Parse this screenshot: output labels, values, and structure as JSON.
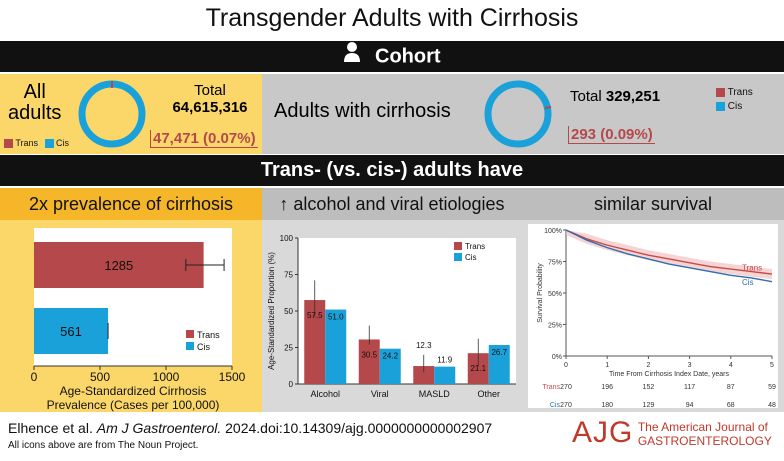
{
  "title": "Transgender Adults with Cirrhosis",
  "cohort_bar": {
    "label": "Cohort",
    "icon": "person-icon"
  },
  "all_adults": {
    "label_line1": "All",
    "label_line2": "adults",
    "total_label": "Total",
    "total_value": "64,615,316",
    "trans_value": "47,471 (0.07%)",
    "legend_trans": "Trans",
    "legend_cis": "Cis"
  },
  "cirrhosis": {
    "label": "Adults with cirrhosis",
    "total_label": "Total",
    "total_value": "329,251",
    "trans_value": "293 (0.09%)",
    "legend_trans": "Trans",
    "legend_cis": "Cis"
  },
  "colors": {
    "trans": "#b5484a",
    "cis": "#1ba1d9",
    "yellow": "#fbd76a",
    "gray": "#c8c8c8",
    "dark": "#111111"
  },
  "findings_bar": {
    "label": "Trans- (vs. cis-) adults have"
  },
  "panel1": {
    "heading": "2x prevalence of cirrhosis",
    "chart_data": {
      "type": "bar",
      "orientation": "horizontal",
      "categories": [
        "Trans",
        "Cis"
      ],
      "values": [
        1285,
        561
      ],
      "labels": [
        "1285",
        "561"
      ],
      "xlim": [
        0,
        1500
      ],
      "xticks": [
        "0",
        "500",
        "1000",
        "1500"
      ],
      "xlabel_line1": "Age-Standardized Cirrhosis",
      "xlabel_line2": "Prevalence (Cases per 100,000)",
      "legend": [
        "Trans",
        "Cis"
      ]
    }
  },
  "panel2": {
    "heading": "↑ alcohol and viral etiologies",
    "chart_data": {
      "type": "bar",
      "categories": [
        "Alcohol",
        "Viral",
        "MASLD",
        "Other"
      ],
      "series": [
        {
          "name": "Trans",
          "values": [
            57.5,
            30.5,
            12.3,
            21.1
          ],
          "labels": [
            "57.5",
            "30.5",
            "12.3",
            "21.1"
          ]
        },
        {
          "name": "Cis",
          "values": [
            51.0,
            24.2,
            11.9,
            26.7
          ],
          "labels": [
            "51.0",
            "24.2",
            "11.9",
            "26.7"
          ]
        }
      ],
      "ylabel": "Age-Standardized Proportion (%)",
      "ylim": [
        0,
        100
      ],
      "yticks": [
        "0",
        "25",
        "50",
        "75",
        "100"
      ]
    }
  },
  "panel3": {
    "heading": "similar survival",
    "chart_data": {
      "type": "line",
      "ylabel": "Survival Probability",
      "xlabel": "Time From Cirrhosis Index Date, years",
      "yticks": [
        "0%",
        "25%",
        "50%",
        "75%",
        "100%"
      ],
      "xticks": [
        "0",
        "1",
        "2",
        "3",
        "4",
        "5"
      ],
      "xlim": [
        0,
        5
      ],
      "ylim": [
        0,
        100
      ],
      "series": [
        {
          "name": "Trans",
          "x": [
            0,
            0.5,
            1,
            1.5,
            2,
            2.5,
            3,
            3.5,
            4,
            4.5,
            5
          ],
          "y": [
            100,
            93,
            88,
            84,
            80,
            77,
            74,
            71,
            69,
            67,
            65
          ]
        },
        {
          "name": "Cis",
          "x": [
            0,
            0.5,
            1,
            1.5,
            2,
            2.5,
            3,
            3.5,
            4,
            4.5,
            5
          ],
          "y": [
            100,
            92,
            86,
            81,
            77,
            73,
            70,
            67,
            64,
            62,
            59
          ]
        }
      ],
      "legend": [
        "Trans",
        "Cis"
      ],
      "at_risk": [
        {
          "name": "Trans",
          "values": [
            "270",
            "196",
            "152",
            "117",
            "87",
            "59"
          ]
        },
        {
          "name": "Cis",
          "values": [
            "270",
            "180",
            "129",
            "94",
            "68",
            "48"
          ]
        }
      ]
    }
  },
  "footer": {
    "citation_authors": "Elhence et al.",
    "citation_journal": "Am J Gastroenterol.",
    "citation_rest": "2024.doi:10.14309/ajg.0000000000002907",
    "icons_note": "All icons above are from The Noun Project.",
    "logo_letters": "AJG",
    "logo_line1": "The American Journal of",
    "logo_line2": "GASTROENTEROLOGY"
  }
}
